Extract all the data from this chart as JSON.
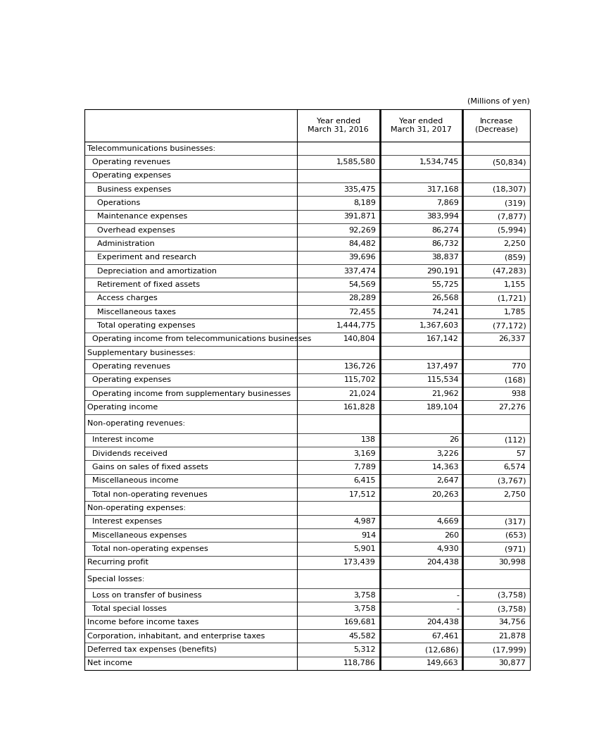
{
  "title_right": "(Millions of yen)",
  "col_headers": [
    "",
    "Year ended\nMarch 31, 2016",
    "Year ended\nMarch 31, 2017",
    "Increase\n(Decrease)"
  ],
  "rows": [
    {
      "label": "Telecommunications businesses:",
      "indent": 0,
      "v2016": "",
      "v2017": "",
      "vchg": "",
      "section_header": true,
      "extra_top": false
    },
    {
      "label": "  Operating revenues",
      "indent": 0,
      "v2016": "1,585,580",
      "v2017": "1,534,745",
      "vchg": "(50,834)",
      "section_header": false,
      "extra_top": false
    },
    {
      "label": "  Operating expenses",
      "indent": 0,
      "v2016": "",
      "v2017": "",
      "vchg": "",
      "section_header": false,
      "extra_top": false
    },
    {
      "label": "    Business expenses",
      "indent": 0,
      "v2016": "335,475",
      "v2017": "317,168",
      "vchg": "(18,307)",
      "section_header": false,
      "extra_top": false
    },
    {
      "label": "    Operations",
      "indent": 0,
      "v2016": "8,189",
      "v2017": "7,869",
      "vchg": "(319)",
      "section_header": false,
      "extra_top": false
    },
    {
      "label": "    Maintenance expenses",
      "indent": 0,
      "v2016": "391,871",
      "v2017": "383,994",
      "vchg": "(7,877)",
      "section_header": false,
      "extra_top": false
    },
    {
      "label": "    Overhead expenses",
      "indent": 0,
      "v2016": "92,269",
      "v2017": "86,274",
      "vchg": "(5,994)",
      "section_header": false,
      "extra_top": false
    },
    {
      "label": "    Administration",
      "indent": 0,
      "v2016": "84,482",
      "v2017": "86,732",
      "vchg": "2,250",
      "section_header": false,
      "extra_top": false
    },
    {
      "label": "    Experiment and research",
      "indent": 0,
      "v2016": "39,696",
      "v2017": "38,837",
      "vchg": "(859)",
      "section_header": false,
      "extra_top": false
    },
    {
      "label": "    Depreciation and amortization",
      "indent": 0,
      "v2016": "337,474",
      "v2017": "290,191",
      "vchg": "(47,283)",
      "section_header": false,
      "extra_top": false
    },
    {
      "label": "    Retirement of fixed assets",
      "indent": 0,
      "v2016": "54,569",
      "v2017": "55,725",
      "vchg": "1,155",
      "section_header": false,
      "extra_top": false
    },
    {
      "label": "    Access charges",
      "indent": 0,
      "v2016": "28,289",
      "v2017": "26,568",
      "vchg": "(1,721)",
      "section_header": false,
      "extra_top": false
    },
    {
      "label": "    Miscellaneous taxes",
      "indent": 0,
      "v2016": "72,455",
      "v2017": "74,241",
      "vchg": "1,785",
      "section_header": false,
      "extra_top": false
    },
    {
      "label": "    Total operating expenses",
      "indent": 0,
      "v2016": "1,444,775",
      "v2017": "1,367,603",
      "vchg": "(77,172)",
      "section_header": false,
      "extra_top": false
    },
    {
      "label": "  Operating income from telecommunications businesses",
      "indent": 0,
      "v2016": "140,804",
      "v2017": "167,142",
      "vchg": "26,337",
      "section_header": false,
      "extra_top": false
    },
    {
      "label": "Supplementary businesses:",
      "indent": 0,
      "v2016": "",
      "v2017": "",
      "vchg": "",
      "section_header": true,
      "extra_top": false
    },
    {
      "label": "  Operating revenues",
      "indent": 0,
      "v2016": "136,726",
      "v2017": "137,497",
      "vchg": "770",
      "section_header": false,
      "extra_top": false
    },
    {
      "label": "  Operating expenses",
      "indent": 0,
      "v2016": "115,702",
      "v2017": "115,534",
      "vchg": "(168)",
      "section_header": false,
      "extra_top": false
    },
    {
      "label": "  Operating income from supplementary businesses",
      "indent": 0,
      "v2016": "21,024",
      "v2017": "21,962",
      "vchg": "938",
      "section_header": false,
      "extra_top": false
    },
    {
      "label": "Operating income",
      "indent": 0,
      "v2016": "161,828",
      "v2017": "189,104",
      "vchg": "27,276",
      "section_header": false,
      "extra_top": false
    },
    {
      "label": "Non-operating revenues:",
      "indent": 0,
      "v2016": "",
      "v2017": "",
      "vchg": "",
      "section_header": true,
      "extra_top": true
    },
    {
      "label": "  Interest income",
      "indent": 0,
      "v2016": "138",
      "v2017": "26",
      "vchg": "(112)",
      "section_header": false,
      "extra_top": false
    },
    {
      "label": "  Dividends received",
      "indent": 0,
      "v2016": "3,169",
      "v2017": "3,226",
      "vchg": "57",
      "section_header": false,
      "extra_top": false
    },
    {
      "label": "  Gains on sales of fixed assets",
      "indent": 0,
      "v2016": "7,789",
      "v2017": "14,363",
      "vchg": "6,574",
      "section_header": false,
      "extra_top": false
    },
    {
      "label": "  Miscellaneous income",
      "indent": 0,
      "v2016": "6,415",
      "v2017": "2,647",
      "vchg": "(3,767)",
      "section_header": false,
      "extra_top": false
    },
    {
      "label": "  Total non-operating revenues",
      "indent": 0,
      "v2016": "17,512",
      "v2017": "20,263",
      "vchg": "2,750",
      "section_header": false,
      "extra_top": false
    },
    {
      "label": "Non-operating expenses:",
      "indent": 0,
      "v2016": "",
      "v2017": "",
      "vchg": "",
      "section_header": true,
      "extra_top": false
    },
    {
      "label": "  Interest expenses",
      "indent": 0,
      "v2016": "4,987",
      "v2017": "4,669",
      "vchg": "(317)",
      "section_header": false,
      "extra_top": false
    },
    {
      "label": "  Miscellaneous expenses",
      "indent": 0,
      "v2016": "914",
      "v2017": "260",
      "vchg": "(653)",
      "section_header": false,
      "extra_top": false
    },
    {
      "label": "  Total non-operating expenses",
      "indent": 0,
      "v2016": "5,901",
      "v2017": "4,930",
      "vchg": "(971)",
      "section_header": false,
      "extra_top": false
    },
    {
      "label": "Recurring profit",
      "indent": 0,
      "v2016": "173,439",
      "v2017": "204,438",
      "vchg": "30,998",
      "section_header": false,
      "extra_top": false
    },
    {
      "label": "Special losses:",
      "indent": 0,
      "v2016": "",
      "v2017": "",
      "vchg": "",
      "section_header": true,
      "extra_top": true
    },
    {
      "label": "  Loss on transfer of business",
      "indent": 0,
      "v2016": "3,758",
      "v2017": "-",
      "vchg": "(3,758)",
      "section_header": false,
      "extra_top": false
    },
    {
      "label": "  Total special losses",
      "indent": 0,
      "v2016": "3,758",
      "v2017": "-",
      "vchg": "(3,758)",
      "section_header": false,
      "extra_top": false
    },
    {
      "label": "Income before income taxes",
      "indent": 0,
      "v2016": "169,681",
      "v2017": "204,438",
      "vchg": "34,756",
      "section_header": false,
      "extra_top": false
    },
    {
      "label": "Corporation, inhabitant, and enterprise taxes",
      "indent": 0,
      "v2016": "45,582",
      "v2017": "67,461",
      "vchg": "21,878",
      "section_header": false,
      "extra_top": false
    },
    {
      "label": "Deferred tax expenses (benefits)",
      "indent": 0,
      "v2016": "5,312",
      "v2017": "(12,686)",
      "vchg": "(17,999)",
      "section_header": false,
      "extra_top": false
    },
    {
      "label": "Net income",
      "indent": 0,
      "v2016": "118,786",
      "v2017": "149,663",
      "vchg": "30,877",
      "section_header": false,
      "extra_top": false
    }
  ],
  "text_color": "#000000",
  "bg_color": "#FFFFFF",
  "border_color": "#000000",
  "font_size": 8.0,
  "header_font_size": 8.0
}
